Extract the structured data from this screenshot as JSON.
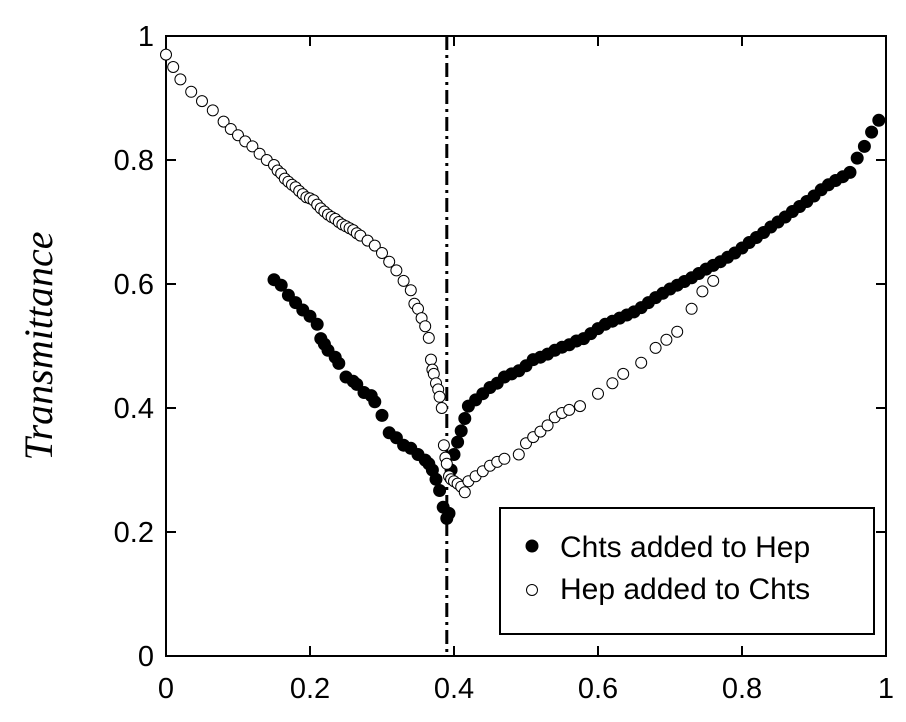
{
  "chart_data": {
    "type": "scatter",
    "title": "",
    "xlabel": "",
    "ylabel": "Transmittance",
    "xlim": [
      0,
      1
    ],
    "ylim": [
      0,
      1
    ],
    "xticks": [
      "0",
      "0.2",
      "0.4",
      "0.6",
      "0.8",
      "1"
    ],
    "yticks": [
      "0",
      "0.2",
      "0.4",
      "0.6",
      "0.8",
      "1"
    ],
    "grid": false,
    "legend_position": "bottom-right",
    "reference_line": {
      "x": 0.39,
      "style": "dash-dot"
    },
    "series": [
      {
        "name": "Chts added to Hep",
        "marker": "filled-circle",
        "color": "#000000",
        "points": [
          [
            0.15,
            0.607
          ],
          [
            0.16,
            0.598
          ],
          [
            0.17,
            0.582
          ],
          [
            0.18,
            0.57
          ],
          [
            0.19,
            0.558
          ],
          [
            0.2,
            0.548
          ],
          [
            0.21,
            0.535
          ],
          [
            0.215,
            0.512
          ],
          [
            0.22,
            0.503
          ],
          [
            0.225,
            0.493
          ],
          [
            0.235,
            0.482
          ],
          [
            0.24,
            0.472
          ],
          [
            0.25,
            0.45
          ],
          [
            0.26,
            0.443
          ],
          [
            0.265,
            0.438
          ],
          [
            0.275,
            0.425
          ],
          [
            0.285,
            0.42
          ],
          [
            0.29,
            0.41
          ],
          [
            0.3,
            0.388
          ],
          [
            0.31,
            0.36
          ],
          [
            0.32,
            0.352
          ],
          [
            0.33,
            0.34
          ],
          [
            0.34,
            0.335
          ],
          [
            0.35,
            0.325
          ],
          [
            0.36,
            0.316
          ],
          [
            0.365,
            0.31
          ],
          [
            0.37,
            0.3
          ],
          [
            0.375,
            0.285
          ],
          [
            0.38,
            0.267
          ],
          [
            0.385,
            0.24
          ],
          [
            0.39,
            0.222
          ],
          [
            0.393,
            0.23
          ],
          [
            0.396,
            0.3
          ],
          [
            0.4,
            0.325
          ],
          [
            0.405,
            0.345
          ],
          [
            0.41,
            0.363
          ],
          [
            0.415,
            0.383
          ],
          [
            0.42,
            0.403
          ],
          [
            0.43,
            0.413
          ],
          [
            0.44,
            0.423
          ],
          [
            0.45,
            0.433
          ],
          [
            0.46,
            0.44
          ],
          [
            0.47,
            0.45
          ],
          [
            0.48,
            0.455
          ],
          [
            0.49,
            0.46
          ],
          [
            0.5,
            0.468
          ],
          [
            0.51,
            0.478
          ],
          [
            0.52,
            0.482
          ],
          [
            0.53,
            0.487
          ],
          [
            0.54,
            0.493
          ],
          [
            0.55,
            0.498
          ],
          [
            0.56,
            0.502
          ],
          [
            0.57,
            0.508
          ],
          [
            0.58,
            0.512
          ],
          [
            0.59,
            0.52
          ],
          [
            0.6,
            0.528
          ],
          [
            0.61,
            0.535
          ],
          [
            0.62,
            0.54
          ],
          [
            0.63,
            0.545
          ],
          [
            0.64,
            0.55
          ],
          [
            0.65,
            0.555
          ],
          [
            0.66,
            0.562
          ],
          [
            0.67,
            0.57
          ],
          [
            0.68,
            0.578
          ],
          [
            0.69,
            0.585
          ],
          [
            0.7,
            0.592
          ],
          [
            0.71,
            0.598
          ],
          [
            0.72,
            0.604
          ],
          [
            0.73,
            0.61
          ],
          [
            0.74,
            0.617
          ],
          [
            0.75,
            0.624
          ],
          [
            0.76,
            0.63
          ],
          [
            0.77,
            0.636
          ],
          [
            0.78,
            0.643
          ],
          [
            0.79,
            0.65
          ],
          [
            0.8,
            0.658
          ],
          [
            0.81,
            0.667
          ],
          [
            0.82,
            0.675
          ],
          [
            0.83,
            0.683
          ],
          [
            0.84,
            0.692
          ],
          [
            0.85,
            0.7
          ],
          [
            0.86,
            0.708
          ],
          [
            0.87,
            0.717
          ],
          [
            0.88,
            0.725
          ],
          [
            0.89,
            0.733
          ],
          [
            0.9,
            0.742
          ],
          [
            0.91,
            0.752
          ],
          [
            0.92,
            0.76
          ],
          [
            0.93,
            0.767
          ],
          [
            0.94,
            0.773
          ],
          [
            0.95,
            0.78
          ],
          [
            0.96,
            0.803
          ],
          [
            0.97,
            0.822
          ],
          [
            0.98,
            0.845
          ],
          [
            0.99,
            0.864
          ]
        ]
      },
      {
        "name": "Hep added to Chts",
        "marker": "open-circle",
        "color": "#000000",
        "points": [
          [
            0.0,
            0.97
          ],
          [
            0.01,
            0.95
          ],
          [
            0.02,
            0.93
          ],
          [
            0.035,
            0.91
          ],
          [
            0.05,
            0.895
          ],
          [
            0.065,
            0.88
          ],
          [
            0.08,
            0.862
          ],
          [
            0.09,
            0.85
          ],
          [
            0.1,
            0.84
          ],
          [
            0.11,
            0.83
          ],
          [
            0.12,
            0.822
          ],
          [
            0.13,
            0.81
          ],
          [
            0.14,
            0.8
          ],
          [
            0.15,
            0.792
          ],
          [
            0.155,
            0.783
          ],
          [
            0.16,
            0.778
          ],
          [
            0.165,
            0.77
          ],
          [
            0.17,
            0.765
          ],
          [
            0.175,
            0.76
          ],
          [
            0.18,
            0.756
          ],
          [
            0.185,
            0.75
          ],
          [
            0.19,
            0.745
          ],
          [
            0.195,
            0.74
          ],
          [
            0.2,
            0.738
          ],
          [
            0.205,
            0.735
          ],
          [
            0.21,
            0.728
          ],
          [
            0.215,
            0.722
          ],
          [
            0.22,
            0.717
          ],
          [
            0.225,
            0.712
          ],
          [
            0.23,
            0.708
          ],
          [
            0.235,
            0.705
          ],
          [
            0.24,
            0.7
          ],
          [
            0.245,
            0.696
          ],
          [
            0.25,
            0.693
          ],
          [
            0.255,
            0.69
          ],
          [
            0.26,
            0.687
          ],
          [
            0.265,
            0.682
          ],
          [
            0.27,
            0.678
          ],
          [
            0.28,
            0.67
          ],
          [
            0.29,
            0.662
          ],
          [
            0.3,
            0.65
          ],
          [
            0.31,
            0.636
          ],
          [
            0.32,
            0.622
          ],
          [
            0.33,
            0.605
          ],
          [
            0.34,
            0.59
          ],
          [
            0.345,
            0.568
          ],
          [
            0.35,
            0.56
          ],
          [
            0.355,
            0.545
          ],
          [
            0.36,
            0.532
          ],
          [
            0.365,
            0.513
          ],
          [
            0.368,
            0.478
          ],
          [
            0.37,
            0.462
          ],
          [
            0.372,
            0.455
          ],
          [
            0.375,
            0.44
          ],
          [
            0.378,
            0.43
          ],
          [
            0.38,
            0.418
          ],
          [
            0.383,
            0.4
          ],
          [
            0.386,
            0.34
          ],
          [
            0.388,
            0.32
          ],
          [
            0.39,
            0.31
          ],
          [
            0.393,
            0.29
          ],
          [
            0.396,
            0.285
          ],
          [
            0.4,
            0.282
          ],
          [
            0.405,
            0.278
          ],
          [
            0.41,
            0.273
          ],
          [
            0.415,
            0.264
          ],
          [
            0.42,
            0.282
          ],
          [
            0.43,
            0.29
          ],
          [
            0.44,
            0.298
          ],
          [
            0.45,
            0.307
          ],
          [
            0.46,
            0.313
          ],
          [
            0.47,
            0.318
          ],
          [
            0.49,
            0.325
          ],
          [
            0.5,
            0.343
          ],
          [
            0.51,
            0.353
          ],
          [
            0.52,
            0.362
          ],
          [
            0.53,
            0.372
          ],
          [
            0.54,
            0.385
          ],
          [
            0.55,
            0.392
          ],
          [
            0.56,
            0.397
          ],
          [
            0.575,
            0.403
          ],
          [
            0.6,
            0.423
          ],
          [
            0.62,
            0.44
          ],
          [
            0.635,
            0.455
          ],
          [
            0.66,
            0.473
          ],
          [
            0.68,
            0.497
          ],
          [
            0.695,
            0.51
          ],
          [
            0.71,
            0.523
          ],
          [
            0.73,
            0.56
          ],
          [
            0.745,
            0.588
          ],
          [
            0.76,
            0.605
          ]
        ]
      }
    ]
  }
}
